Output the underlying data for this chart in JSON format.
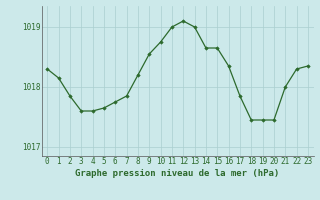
{
  "x": [
    0,
    1,
    2,
    3,
    4,
    5,
    6,
    7,
    8,
    9,
    10,
    11,
    12,
    13,
    14,
    15,
    16,
    17,
    18,
    19,
    20,
    21,
    22,
    23
  ],
  "y": [
    1018.3,
    1018.15,
    1017.85,
    1017.6,
    1017.6,
    1017.65,
    1017.75,
    1017.85,
    1018.2,
    1018.55,
    1018.75,
    1019.0,
    1019.1,
    1019.0,
    1018.65,
    1018.65,
    1018.35,
    1017.85,
    1017.45,
    1017.45,
    1017.45,
    1018.0,
    1018.3,
    1018.35
  ],
  "line_color": "#2d6a2d",
  "marker": "D",
  "marker_size": 1.8,
  "bg_color": "#cce9ea",
  "grid_color": "#aacfcf",
  "text_color": "#2d6a2d",
  "xlabel": "Graphe pression niveau de la mer (hPa)",
  "ylim": [
    1016.85,
    1019.35
  ],
  "yticks": [
    1017,
    1018,
    1019
  ],
  "xticks": [
    0,
    1,
    2,
    3,
    4,
    5,
    6,
    7,
    8,
    9,
    10,
    11,
    12,
    13,
    14,
    15,
    16,
    17,
    18,
    19,
    20,
    21,
    22,
    23
  ],
  "tick_fontsize": 5.5,
  "xlabel_fontsize": 6.5,
  "linewidth": 0.9
}
